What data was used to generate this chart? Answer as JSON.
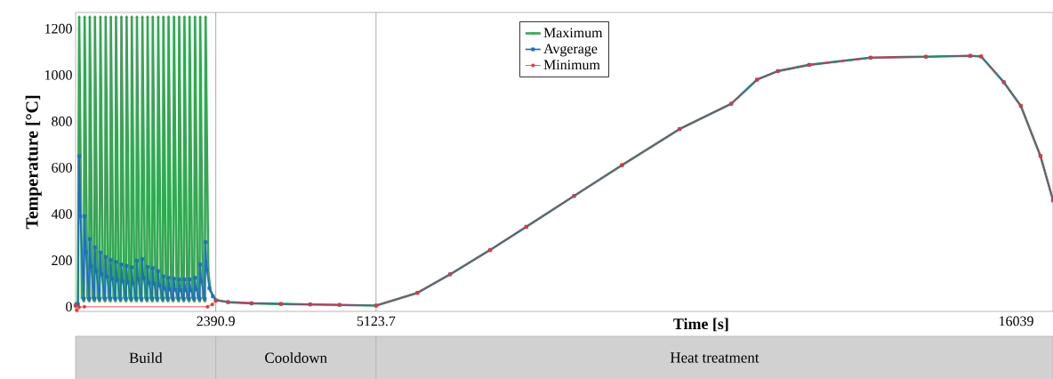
{
  "chart_data": {
    "type": "line",
    "xlabel": "Time [s]",
    "ylabel": "Temperature [°C]",
    "xlim": [
      0,
      16668
    ],
    "ylim": [
      -20,
      1270
    ],
    "legend": "top",
    "xticks": [
      2390.9,
      5123.7,
      16039
    ],
    "yticks": [
      0,
      200,
      400,
      600,
      800,
      1000,
      1200
    ],
    "ref_lines": [
      {
        "axis": "x",
        "value": 2390.9,
        "color": "#a0a0a0"
      },
      {
        "axis": "x",
        "value": 5123.7,
        "color": "#a0a0a0"
      }
    ],
    "annotations": [
      "Build",
      "Cooldown",
      "Heat treatment"
    ],
    "series": [
      {
        "name": "Maximum",
        "color": "#33a852",
        "marker": "triangle",
        "x": [
          0,
          40,
          61,
          107,
          140,
          154,
          200,
          233,
          242,
          288,
          321,
          330,
          376,
          409,
          423,
          469,
          502,
          513,
          559,
          592,
          601,
          647,
          680,
          689,
          735,
          768,
          781,
          827,
          860,
          870,
          916,
          949,
          958,
          1004,
          1037,
          1046,
          1092,
          1125,
          1139,
          1185,
          1218,
          1228,
          1274,
          1307,
          1316,
          1362,
          1395,
          1409,
          1455,
          1488,
          1497,
          1543,
          1576,
          1585,
          1631,
          1664,
          1678,
          1724,
          1757,
          1766,
          1812,
          1845,
          1856,
          1902,
          1935,
          1944,
          1990,
          2023,
          2036,
          2082,
          2115,
          2125,
          2171,
          2204,
          2217,
          2263,
          2300,
          2350,
          2390.9,
          2600,
          3000,
          3500,
          4000,
          4500,
          5123.7,
          5829,
          6386,
          7069,
          7685,
          8500,
          9318,
          10300,
          11181,
          11620,
          11976,
          12511,
          13558,
          14500,
          15258,
          15443,
          15829,
          16119,
          16453,
          16668
        ],
        "values": [
          15,
          15,
          1250,
          40,
          25,
          1250,
          40,
          25,
          1250,
          40,
          25,
          1250,
          40,
          25,
          1250,
          40,
          25,
          1250,
          40,
          25,
          1250,
          40,
          25,
          1250,
          40,
          25,
          1250,
          40,
          25,
          1250,
          40,
          25,
          1250,
          40,
          25,
          1250,
          40,
          25,
          1250,
          40,
          25,
          1250,
          40,
          25,
          1250,
          40,
          25,
          1250,
          40,
          25,
          1250,
          40,
          25,
          1250,
          40,
          25,
          1250,
          40,
          25,
          1250,
          40,
          25,
          1250,
          40,
          25,
          1250,
          40,
          25,
          1250,
          40,
          25,
          1250,
          40,
          25,
          1250,
          150,
          70,
          45,
          30,
          20,
          15,
          12,
          10,
          8,
          5,
          60,
          140,
          245,
          345,
          478,
          611,
          767,
          876,
          980,
          1017,
          1044,
          1075,
          1079,
          1083,
          1080,
          969,
          867,
          651,
          459
        ]
      },
      {
        "name": "Avgerage",
        "color": "#1f70c1",
        "marker": "square",
        "x": [
          0,
          40,
          61,
          81,
          140,
          154,
          174,
          233,
          242,
          262,
          321,
          330,
          350,
          409,
          423,
          443,
          502,
          513,
          533,
          592,
          601,
          621,
          680,
          689,
          709,
          768,
          781,
          801,
          860,
          870,
          890,
          949,
          958,
          978,
          1037,
          1046,
          1066,
          1125,
          1139,
          1159,
          1218,
          1228,
          1248,
          1307,
          1316,
          1336,
          1395,
          1409,
          1429,
          1488,
          1497,
          1517,
          1576,
          1585,
          1605,
          1664,
          1678,
          1698,
          1757,
          1766,
          1786,
          1845,
          1856,
          1876,
          1935,
          1944,
          1964,
          2023,
          2036,
          2056,
          2115,
          2125,
          2145,
          2204,
          2217,
          2237,
          2280,
          2340,
          2390.9,
          2600,
          3000,
          3500,
          4000,
          4500,
          5123.7,
          5829,
          6386,
          7069,
          7685,
          8500,
          9318,
          10300,
          11181,
          11620,
          11976,
          12511,
          13558,
          14500,
          15258,
          15443,
          15829,
          16119,
          16453,
          16668
        ],
        "values": [
          5,
          10,
          650,
          390,
          35,
          391,
          235,
          35,
          292,
          175,
          35,
          257,
          154,
          35,
          234,
          140,
          35,
          215,
          129,
          35,
          202,
          121,
          35,
          193,
          116,
          35,
          182,
          109,
          35,
          176,
          106,
          35,
          170,
          102,
          35,
          199,
          119,
          35,
          206,
          124,
          35,
          172,
          103,
          35,
          167,
          100,
          35,
          154,
          92,
          35,
          131,
          79,
          35,
          125,
          75,
          35,
          121,
          73,
          35,
          118,
          71,
          35,
          118,
          71,
          35,
          118,
          71,
          35,
          125,
          75,
          35,
          182,
          109,
          35,
          279,
          160,
          80,
          45,
          28,
          20,
          15,
          12,
          10,
          8,
          5,
          60,
          140,
          245,
          345,
          478,
          611,
          767,
          876,
          980,
          1017,
          1044,
          1075,
          1079,
          1083,
          1080,
          969,
          867,
          651,
          459
        ]
      },
      {
        "name": "Minimum",
        "color": "#ff2a2a",
        "marker": "circle",
        "x": [
          0,
          20,
          60,
          150,
          2250,
          2330,
          2390.9,
          2600,
          3000,
          3500,
          4000,
          4500,
          5123.7,
          5829,
          6386,
          7069,
          7685,
          8500,
          9318,
          10300,
          11181,
          11620,
          11976,
          12511,
          13558,
          14500,
          15258,
          15443,
          15829,
          16119,
          16453,
          16668
        ],
        "values": [
          5,
          -15,
          -2,
          0,
          0,
          10,
          25,
          20,
          15,
          12,
          10,
          8,
          5,
          60,
          140,
          245,
          345,
          478,
          611,
          767,
          876,
          980,
          1017,
          1044,
          1075,
          1079,
          1083,
          1080,
          969,
          867,
          651,
          459
        ]
      }
    ]
  }
}
